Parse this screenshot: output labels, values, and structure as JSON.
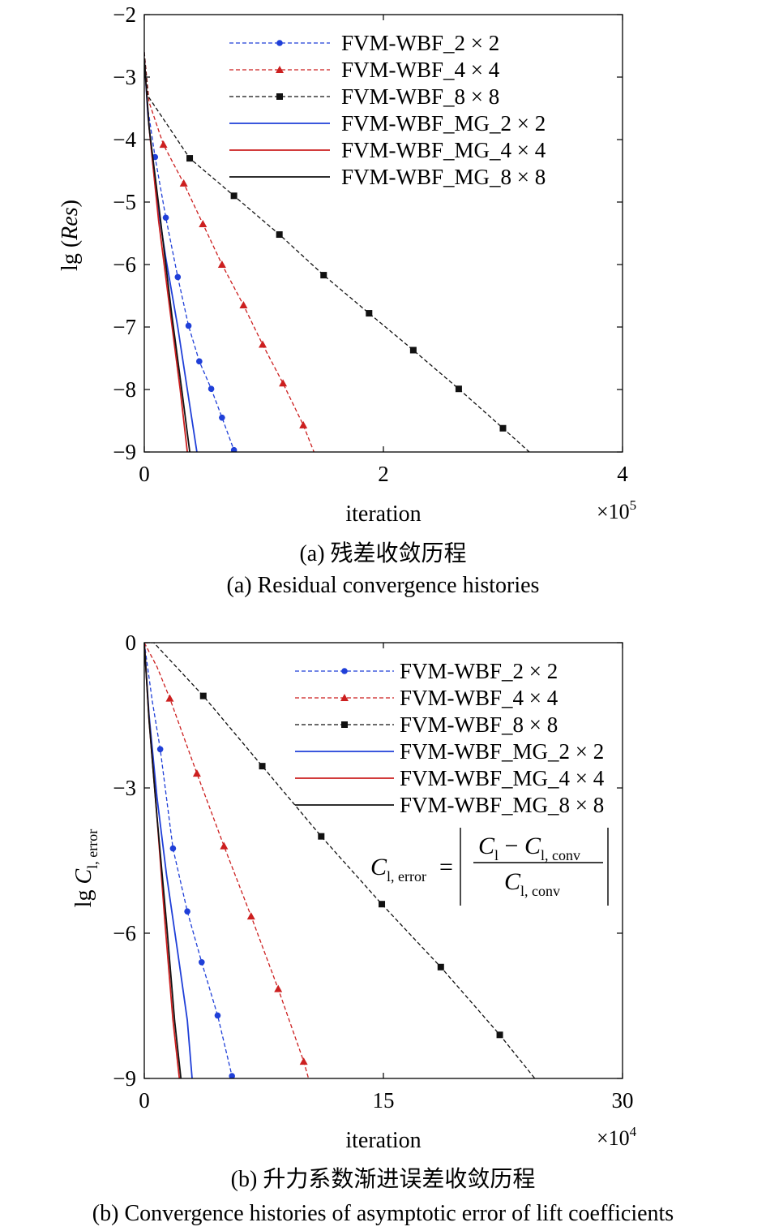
{
  "charts": [
    {
      "type": "line",
      "ylabel_prefix": "lg (",
      "ylabel_italic": "Res",
      "ylabel_suffix": ")",
      "xlabel": "iteration",
      "x_multiplier": "×10",
      "x_multiplier_exp": "5",
      "xlim": [
        0,
        4
      ],
      "ylim": [
        -9,
        -2
      ],
      "xticks": [
        0,
        2,
        4
      ],
      "yticks": [
        -2,
        -3,
        -4,
        -5,
        -6,
        -7,
        -8,
        -9
      ],
      "legend_position": "top-right",
      "caption_cn": "(a) 残差收敛历程",
      "caption_en": "(a) Residual convergence histories",
      "series": [
        {
          "name": "FVM-WBF_2 × 2",
          "color": "#1f3fd8",
          "dash": "dashed",
          "marker": "circle",
          "points": [
            [
              0,
              -2.6
            ],
            [
              0.03,
              -3.5
            ],
            [
              0.09,
              -4.28
            ],
            [
              0.18,
              -5.25
            ],
            [
              0.28,
              -6.2
            ],
            [
              0.37,
              -6.98
            ],
            [
              0.46,
              -7.55
            ],
            [
              0.56,
              -7.99
            ],
            [
              0.65,
              -8.45
            ],
            [
              0.75,
              -8.97
            ],
            [
              0.77,
              -9.05
            ]
          ],
          "markers": [
            [
              0.09,
              -4.28
            ],
            [
              0.18,
              -5.25
            ],
            [
              0.28,
              -6.2
            ],
            [
              0.37,
              -6.98
            ],
            [
              0.46,
              -7.55
            ],
            [
              0.56,
              -7.99
            ],
            [
              0.65,
              -8.45
            ],
            [
              0.75,
              -8.97
            ]
          ]
        },
        {
          "name": "FVM-WBF_4 × 4",
          "color": "#cc1f1f",
          "dash": "dashed",
          "marker": "triangle",
          "points": [
            [
              0,
              -2.6
            ],
            [
              0.04,
              -3.4
            ],
            [
              0.16,
              -4.08
            ],
            [
              0.33,
              -4.7
            ],
            [
              0.49,
              -5.35
            ],
            [
              0.65,
              -6.0
            ],
            [
              0.83,
              -6.65
            ],
            [
              0.99,
              -7.28
            ],
            [
              1.16,
              -7.9
            ],
            [
              1.33,
              -8.57
            ],
            [
              1.43,
              -9.05
            ]
          ],
          "markers": [
            [
              0.16,
              -4.08
            ],
            [
              0.33,
              -4.7
            ],
            [
              0.49,
              -5.35
            ],
            [
              0.65,
              -6.0
            ],
            [
              0.83,
              -6.65
            ],
            [
              0.99,
              -7.28
            ],
            [
              1.16,
              -7.9
            ],
            [
              1.33,
              -8.57
            ]
          ]
        },
        {
          "name": "FVM-WBF_8 × 8",
          "color": "#111111",
          "dash": "dashed",
          "marker": "square",
          "points": [
            [
              0,
              -2.6
            ],
            [
              0.03,
              -3.3
            ],
            [
              0.38,
              -4.3
            ],
            [
              0.75,
              -4.9
            ],
            [
              1.13,
              -5.52
            ],
            [
              1.5,
              -6.17
            ],
            [
              1.88,
              -6.78
            ],
            [
              2.25,
              -7.37
            ],
            [
              2.63,
              -7.99
            ],
            [
              3.0,
              -8.62
            ],
            [
              3.22,
              -9.0
            ]
          ],
          "markers": [
            [
              0.38,
              -4.3
            ],
            [
              0.75,
              -4.9
            ],
            [
              1.13,
              -5.52
            ],
            [
              1.5,
              -6.17
            ],
            [
              1.88,
              -6.78
            ],
            [
              2.25,
              -7.37
            ],
            [
              2.63,
              -7.99
            ],
            [
              3.0,
              -8.62
            ]
          ]
        },
        {
          "name": "FVM-WBF_MG_2 × 2",
          "color": "#1f3fd8",
          "dash": "solid",
          "marker": "none",
          "points": [
            [
              0,
              -2.7
            ],
            [
              0.03,
              -3.6
            ],
            [
              0.1,
              -4.9
            ],
            [
              0.18,
              -5.9
            ],
            [
              0.28,
              -7.0
            ],
            [
              0.36,
              -8.0
            ],
            [
              0.44,
              -9.0
            ]
          ],
          "markers": []
        },
        {
          "name": "FVM-WBF_MG_4 × 4",
          "color": "#cc1f1f",
          "dash": "solid",
          "marker": "none",
          "points": [
            [
              0,
              -2.7
            ],
            [
              0.04,
              -3.8
            ],
            [
              0.12,
              -5.3
            ],
            [
              0.22,
              -6.8
            ],
            [
              0.3,
              -8.0
            ],
            [
              0.36,
              -9.0
            ]
          ],
          "markers": []
        },
        {
          "name": "FVM-WBF_MG_8 × 8",
          "color": "#111111",
          "dash": "solid",
          "marker": "none",
          "points": [
            [
              0,
              -2.7
            ],
            [
              0.04,
              -3.8
            ],
            [
              0.13,
              -5.2
            ],
            [
              0.23,
              -6.8
            ],
            [
              0.32,
              -8.1
            ],
            [
              0.38,
              -9.0
            ]
          ],
          "markers": []
        }
      ]
    },
    {
      "type": "line",
      "ylabel_prefix": "lg ",
      "ylabel_italic": "C",
      "ylabel_sub": "l, error",
      "xlabel": "iteration",
      "x_multiplier": "×10",
      "x_multiplier_exp": "4",
      "xlim": [
        0,
        30
      ],
      "ylim": [
        -9,
        0
      ],
      "xticks": [
        0,
        15,
        30
      ],
      "yticks": [
        0,
        -3,
        -6,
        -9
      ],
      "legend_position": "top-right",
      "formula": {
        "lhs": "C",
        "lhs_sub": "l, error",
        "num_a": "C",
        "num_a_sub": "l",
        "minus": "−",
        "num_b": "C",
        "num_b_sub": "l, conv",
        "den": "C",
        "den_sub": "l, conv"
      },
      "caption_cn": "(b) 升力系数渐进误差收敛历程",
      "caption_en": "(b) Convergence histories of asymptotic error of lift coefficients",
      "series": [
        {
          "name": "FVM-WBF_2 × 2",
          "color": "#1f3fd8",
          "dash": "dashed",
          "marker": "circle",
          "points": [
            [
              0,
              0
            ],
            [
              0.5,
              -1.2
            ],
            [
              1.0,
              -2.2
            ],
            [
              1.8,
              -4.25
            ],
            [
              2.7,
              -5.55
            ],
            [
              3.6,
              -6.6
            ],
            [
              4.6,
              -7.7
            ],
            [
              5.5,
              -8.95
            ],
            [
              5.6,
              -9.1
            ]
          ],
          "markers": [
            [
              1.0,
              -2.2
            ],
            [
              1.8,
              -4.25
            ],
            [
              2.7,
              -5.55
            ],
            [
              3.6,
              -6.6
            ],
            [
              4.6,
              -7.7
            ],
            [
              5.5,
              -8.95
            ]
          ]
        },
        {
          "name": "FVM-WBF_4 × 4",
          "color": "#cc1f1f",
          "dash": "dashed",
          "marker": "triangle",
          "points": [
            [
              0,
              0
            ],
            [
              0.8,
              -0.5
            ],
            [
              1.6,
              -1.15
            ],
            [
              3.3,
              -2.7
            ],
            [
              5.0,
              -4.2
            ],
            [
              6.7,
              -5.65
            ],
            [
              8.4,
              -7.15
            ],
            [
              10.0,
              -8.65
            ],
            [
              10.3,
              -9.0
            ]
          ],
          "markers": [
            [
              1.6,
              -1.15
            ],
            [
              3.3,
              -2.7
            ],
            [
              5.0,
              -4.2
            ],
            [
              6.7,
              -5.65
            ],
            [
              8.4,
              -7.15
            ],
            [
              10.0,
              -8.65
            ]
          ]
        },
        {
          "name": "FVM-WBF_8 × 8",
          "color": "#111111",
          "dash": "dashed",
          "marker": "square",
          "points": [
            [
              0,
              0
            ],
            [
              0.6,
              0
            ],
            [
              3.7,
              -1.1
            ],
            [
              7.4,
              -2.55
            ],
            [
              11.1,
              -4.0
            ],
            [
              14.9,
              -5.4
            ],
            [
              18.6,
              -6.7
            ],
            [
              22.3,
              -8.1
            ],
            [
              24.5,
              -9.0
            ]
          ],
          "markers": [
            [
              3.7,
              -1.1
            ],
            [
              7.4,
              -2.55
            ],
            [
              11.1,
              -4.0
            ],
            [
              14.9,
              -5.4
            ],
            [
              18.6,
              -6.7
            ],
            [
              22.3,
              -8.1
            ]
          ]
        },
        {
          "name": "FVM-WBF_MG_2 × 2",
          "color": "#1f3fd8",
          "dash": "solid",
          "marker": "none",
          "points": [
            [
              0,
              0
            ],
            [
              0.3,
              -1.5
            ],
            [
              0.8,
              -3.2
            ],
            [
              1.4,
              -4.8
            ],
            [
              2.1,
              -6.4
            ],
            [
              2.7,
              -7.8
            ],
            [
              3.0,
              -9.0
            ]
          ],
          "markers": []
        },
        {
          "name": "FVM-WBF_MG_4 × 4",
          "color": "#cc1f1f",
          "dash": "solid",
          "marker": "none",
          "points": [
            [
              0,
              0
            ],
            [
              0.3,
              -1.6
            ],
            [
              0.8,
              -3.6
            ],
            [
              1.3,
              -5.8
            ],
            [
              1.8,
              -7.8
            ],
            [
              2.2,
              -9.0
            ]
          ],
          "markers": []
        },
        {
          "name": "FVM-WBF_MG_8 × 8",
          "color": "#111111",
          "dash": "solid",
          "marker": "none",
          "points": [
            [
              0,
              0
            ],
            [
              0.3,
              -1.6
            ],
            [
              0.8,
              -3.6
            ],
            [
              1.4,
              -5.8
            ],
            [
              1.9,
              -7.8
            ],
            [
              2.3,
              -9.0
            ]
          ],
          "markers": []
        }
      ]
    }
  ]
}
